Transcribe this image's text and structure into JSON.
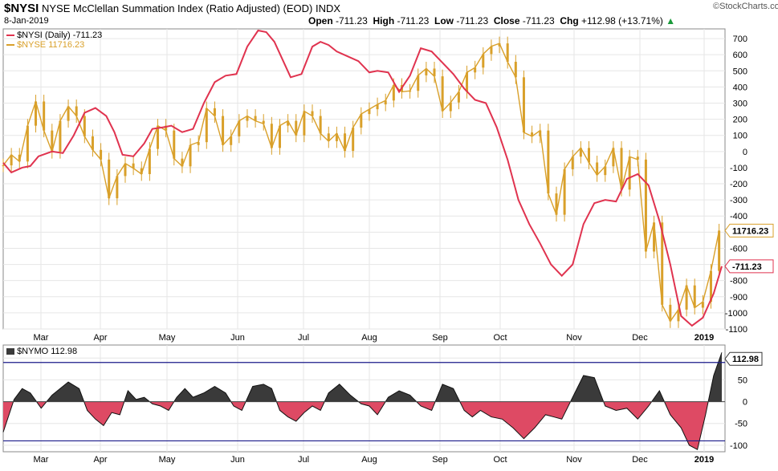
{
  "header": {
    "symbol": "$NYSI",
    "name": "NYSE McClellan Summation Index (Ratio Adjusted) (EOD)",
    "exchange": "INDX",
    "date": "8-Jan-2019",
    "open_label": "Open",
    "open": "-711.23",
    "high_label": "High",
    "high": "-711.23",
    "low_label": "Low",
    "low": "-711.23",
    "close_label": "Close",
    "close": "-711.23",
    "chg_label": "Chg",
    "chg": "+112.98 (+13.71%)",
    "watermark": "©StockCharts.com"
  },
  "legend": {
    "nysi": "$NYSI (Daily) -711.23",
    "nyse": "$NYSE 11716.23",
    "nymo": "$NYMO 112.98"
  },
  "colors": {
    "nysi": "#e0334f",
    "nyse": "#d9a02a",
    "nymo_pos": "#3a3a3a",
    "nymo_neg": "#de4a64",
    "band": "#1a1a8a"
  },
  "chart_data": [
    {
      "type": "line",
      "title": "$NYSI",
      "x_ticks": [
        "Mar",
        "Apr",
        "May",
        "Jun",
        "Jul",
        "Aug",
        "Sep",
        "Oct",
        "Nov",
        "Dec",
        "2019"
      ],
      "y_ticks": [
        700,
        600,
        500,
        400,
        300,
        200,
        100,
        0,
        -100,
        -200,
        -300,
        -400,
        -500,
        -600,
        -700,
        -800,
        -900,
        -1000,
        -1100
      ],
      "ylim": [
        -1100,
        760
      ],
      "grid": true,
      "series": [
        {
          "name": "$NYSI (Daily)",
          "x": [
            0,
            3,
            7,
            10,
            13,
            18,
            22,
            26,
            30,
            34,
            38,
            41,
            44,
            48,
            52,
            55,
            59,
            62,
            66,
            70,
            74,
            78,
            82,
            86,
            90,
            94,
            97,
            100,
            103,
            106,
            110,
            114,
            117,
            120,
            123,
            127,
            131,
            135,
            138,
            142,
            146,
            150,
            154,
            158,
            162,
            166,
            170,
            174,
            178,
            182,
            186,
            190,
            194,
            198,
            202,
            206,
            210,
            214,
            218,
            222,
            226,
            230,
            234,
            238,
            242,
            246,
            250,
            254,
            258,
            262,
            265
          ],
          "y": [
            -70,
            -130,
            -100,
            -90,
            -30,
            0,
            -10,
            100,
            240,
            270,
            220,
            120,
            -20,
            -30,
            50,
            140,
            150,
            160,
            120,
            140,
            300,
            430,
            470,
            480,
            650,
            750,
            740,
            680,
            570,
            460,
            480,
            650,
            680,
            660,
            620,
            590,
            560,
            490,
            500,
            490,
            370,
            470,
            640,
            620,
            550,
            480,
            390,
            320,
            300,
            150,
            -50,
            -300,
            -450,
            -570,
            -700,
            -770,
            -700,
            -450,
            -320,
            -300,
            -310,
            -170,
            -140,
            -210,
            -430,
            -700,
            -1020,
            -1080,
            -1030,
            -880,
            -711.23
          ],
          "last_label": "-711.23"
        },
        {
          "name": "$NYSE",
          "x": [
            0,
            3,
            6,
            9,
            12,
            15,
            18,
            21,
            24,
            27,
            30,
            33,
            36,
            39,
            42,
            45,
            48,
            51,
            54,
            57,
            60,
            63,
            66,
            69,
            72,
            75,
            78,
            81,
            84,
            87,
            90,
            93,
            96,
            99,
            102,
            105,
            108,
            111,
            114,
            117,
            120,
            123,
            126,
            129,
            132,
            135,
            138,
            141,
            144,
            147,
            150,
            153,
            156,
            159,
            162,
            165,
            168,
            171,
            174,
            177,
            180,
            183,
            186,
            189,
            192,
            195,
            198,
            201,
            204,
            207,
            210,
            213,
            216,
            219,
            222,
            225,
            228,
            231,
            234,
            237,
            240,
            243,
            246,
            249,
            252,
            255,
            258,
            261,
            264
          ],
          "y": [
            12390,
            12500,
            12430,
            12800,
            13050,
            12750,
            12530,
            12850,
            13000,
            12900,
            12690,
            12550,
            12450,
            12050,
            12280,
            12410,
            12360,
            12300,
            12560,
            12800,
            12750,
            12460,
            12380,
            12600,
            12630,
            12980,
            12900,
            12600,
            12690,
            12850,
            12900,
            12850,
            12820,
            12570,
            12800,
            12850,
            12700,
            12950,
            12900,
            12720,
            12640,
            12720,
            12540,
            12780,
            12920,
            12970,
            13020,
            13060,
            13220,
            13150,
            13160,
            13320,
            13390,
            13310,
            12950,
            13040,
            13150,
            13350,
            13400,
            13540,
            13620,
            13650,
            13460,
            13300,
            12730,
            12690,
            12750,
            12100,
            11880,
            12350,
            12480,
            12570,
            12420,
            12290,
            12380,
            12570,
            12140,
            12480,
            12450,
            11500,
            11800,
            10950,
            10780,
            10900,
            11150,
            10920,
            10980,
            11300,
            11716.23
          ],
          "last_label": "11716.23"
        }
      ]
    },
    {
      "type": "area",
      "title": "$NYMO",
      "x_ticks": [
        "Mar",
        "Apr",
        "May",
        "Jun",
        "Jul",
        "Aug",
        "Sep",
        "Oct",
        "Nov",
        "Dec",
        "2019"
      ],
      "y_ticks": [
        100,
        50,
        0,
        -50,
        -100
      ],
      "ylim": [
        -115,
        130
      ],
      "bands": [
        90,
        -90
      ],
      "series": [
        {
          "name": "$NYMO",
          "x": [
            0,
            4,
            7,
            10,
            14,
            18,
            21,
            24,
            28,
            31,
            34,
            37,
            40,
            43,
            46,
            49,
            52,
            55,
            58,
            61,
            64,
            67,
            70,
            74,
            78,
            82,
            85,
            88,
            92,
            96,
            99,
            102,
            105,
            108,
            111,
            114,
            117,
            120,
            124,
            128,
            132,
            135,
            138,
            142,
            146,
            150,
            154,
            158,
            162,
            166,
            170,
            173,
            176,
            180,
            184,
            188,
            192,
            196,
            200,
            203,
            206,
            210,
            214,
            218,
            222,
            226,
            230,
            234,
            238,
            242,
            246,
            250,
            253,
            256,
            259,
            262,
            265
          ],
          "y": [
            -70,
            5,
            30,
            20,
            -15,
            15,
            30,
            45,
            30,
            -20,
            -40,
            -55,
            -25,
            -30,
            25,
            5,
            10,
            -5,
            -10,
            -20,
            10,
            30,
            10,
            20,
            35,
            20,
            -10,
            -20,
            35,
            40,
            30,
            -20,
            -35,
            -45,
            -25,
            -10,
            -20,
            20,
            40,
            15,
            -5,
            -10,
            -30,
            10,
            25,
            15,
            -10,
            -20,
            40,
            30,
            -20,
            -35,
            -20,
            -35,
            -40,
            -60,
            -85,
            -60,
            -30,
            -35,
            -40,
            10,
            60,
            55,
            -10,
            -20,
            -15,
            -40,
            -10,
            25,
            -30,
            -60,
            -100,
            -110,
            -30,
            60,
            112.98
          ],
          "last_label": "112.98"
        }
      ]
    }
  ]
}
